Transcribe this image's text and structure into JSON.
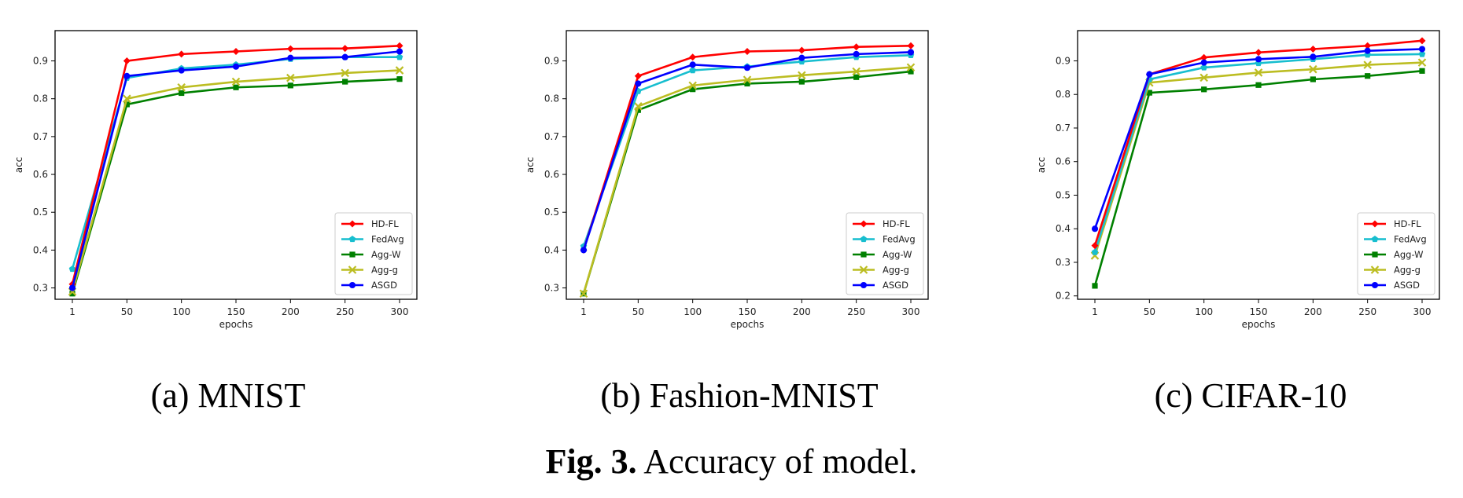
{
  "figure": {
    "caption_label": "Fig. 3.",
    "caption_text": " Accuracy of model."
  },
  "chart_data": [
    {
      "type": "line",
      "caption": "(a) MNIST",
      "xlabel": "epochs",
      "ylabel": "acc",
      "x": [
        "1",
        "50",
        "100",
        "150",
        "200",
        "250",
        "300"
      ],
      "yticks": [
        0.3,
        0.4,
        0.5,
        0.6,
        0.7,
        0.8,
        0.9
      ],
      "ylim": [
        0.27,
        0.98
      ],
      "grid": false,
      "legend_position": "bottom-right",
      "series": [
        {
          "name": "HD-FL",
          "color": "#ff0000",
          "marker": "diamond",
          "values": [
            0.31,
            0.9,
            0.918,
            0.925,
            0.932,
            0.933,
            0.94
          ]
        },
        {
          "name": "FedAvg",
          "color": "#17becf",
          "marker": "pentagon",
          "values": [
            0.35,
            0.855,
            0.88,
            0.89,
            0.905,
            0.91,
            0.91
          ]
        },
        {
          "name": "Agg-W",
          "color": "#008000",
          "marker": "square",
          "values": [
            0.285,
            0.785,
            0.815,
            0.83,
            0.835,
            0.845,
            0.852
          ]
        },
        {
          "name": "Agg-g",
          "color": "#bcbd22",
          "marker": "x",
          "values": [
            0.29,
            0.8,
            0.83,
            0.845,
            0.855,
            0.868,
            0.875
          ]
        },
        {
          "name": "ASGD",
          "color": "#0000ff",
          "marker": "circle",
          "values": [
            0.3,
            0.86,
            0.875,
            0.885,
            0.908,
            0.91,
            0.925
          ]
        }
      ]
    },
    {
      "type": "line",
      "caption": "(b) Fashion-MNIST",
      "xlabel": "epochs",
      "ylabel": "acc",
      "x": [
        "1",
        "50",
        "100",
        "150",
        "200",
        "250",
        "300"
      ],
      "yticks": [
        0.3,
        0.4,
        0.5,
        0.6,
        0.7,
        0.8,
        0.9
      ],
      "ylim": [
        0.27,
        0.98
      ],
      "grid": false,
      "legend_position": "bottom-right",
      "series": [
        {
          "name": "HD-FL",
          "color": "#ff0000",
          "marker": "diamond",
          "values": [
            0.4,
            0.86,
            0.91,
            0.925,
            0.928,
            0.937,
            0.94
          ]
        },
        {
          "name": "FedAvg",
          "color": "#17becf",
          "marker": "pentagon",
          "values": [
            0.41,
            0.82,
            0.875,
            0.885,
            0.898,
            0.91,
            0.915
          ]
        },
        {
          "name": "Agg-W",
          "color": "#008000",
          "marker": "square",
          "values": [
            0.285,
            0.77,
            0.825,
            0.84,
            0.845,
            0.857,
            0.872
          ]
        },
        {
          "name": "Agg-g",
          "color": "#bcbd22",
          "marker": "x",
          "values": [
            0.285,
            0.78,
            0.835,
            0.85,
            0.862,
            0.872,
            0.883
          ]
        },
        {
          "name": "ASGD",
          "color": "#0000ff",
          "marker": "circle",
          "values": [
            0.4,
            0.84,
            0.89,
            0.882,
            0.908,
            0.918,
            0.923
          ]
        }
      ]
    },
    {
      "type": "line",
      "caption": "(c) CIFAR-10",
      "xlabel": "epochs",
      "ylabel": "acc",
      "x": [
        "1",
        "50",
        "100",
        "150",
        "200",
        "250",
        "300"
      ],
      "yticks": [
        0.2,
        0.3,
        0.4,
        0.5,
        0.6,
        0.7,
        0.8,
        0.9
      ],
      "ylim": [
        0.19,
        0.99
      ],
      "grid": false,
      "legend_position": "bottom-right",
      "series": [
        {
          "name": "HD-FL",
          "color": "#ff0000",
          "marker": "diamond",
          "values": [
            0.35,
            0.86,
            0.91,
            0.925,
            0.935,
            0.945,
            0.96
          ]
        },
        {
          "name": "FedAvg",
          "color": "#17becf",
          "marker": "pentagon",
          "values": [
            0.33,
            0.845,
            0.88,
            0.893,
            0.905,
            0.918,
            0.92
          ]
        },
        {
          "name": "Agg-W",
          "color": "#008000",
          "marker": "square",
          "values": [
            0.23,
            0.805,
            0.815,
            0.828,
            0.845,
            0.855,
            0.87
          ]
        },
        {
          "name": "Agg-g",
          "color": "#bcbd22",
          "marker": "x",
          "values": [
            0.32,
            0.835,
            0.85,
            0.865,
            0.875,
            0.888,
            0.895
          ]
        },
        {
          "name": "ASGD",
          "color": "#0000ff",
          "marker": "circle",
          "values": [
            0.4,
            0.86,
            0.895,
            0.905,
            0.912,
            0.93,
            0.935
          ]
        }
      ]
    }
  ]
}
